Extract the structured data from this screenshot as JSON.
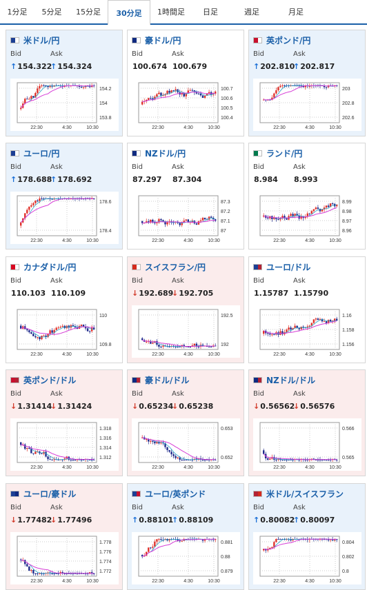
{
  "tabs": [
    "1分足",
    "5分足",
    "15分足",
    "30分足",
    "1時間足",
    "日足",
    "週足",
    "月足"
  ],
  "active_tab": 3,
  "x_ticks": [
    "22:30",
    "4:30",
    "10:30"
  ],
  "colors": {
    "up_candle": "#e0312a",
    "down_candle": "#1f2a8c",
    "ma_short": "#2aa7c9",
    "ma_long": "#d63cd6",
    "title": "#1a5fa8"
  },
  "cards": [
    {
      "pair": "米ドル/円",
      "flag": [
        "#1c3f94",
        "#ffffff"
      ],
      "trend": "up",
      "bid_arrow": "up",
      "ask_arrow": "up",
      "bid": "154.322",
      "ask": "154.324",
      "y_ticks": [
        "154.2",
        "154",
        "153.8"
      ]
    },
    {
      "pair": "豪ドル/円",
      "flag": [
        "#102a80",
        "#ffffff"
      ],
      "trend": "flat",
      "bid_arrow": "",
      "ask_arrow": "",
      "bid": "100.674",
      "ask": "100.679",
      "y_ticks": [
        "100.7",
        "100.6",
        "100.5",
        "100.4"
      ]
    },
    {
      "pair": "英ポンド/円",
      "flag": [
        "#c8102e",
        "#ffffff"
      ],
      "trend": "up",
      "bid_arrow": "up",
      "ask_arrow": "up",
      "bid": "202.810",
      "ask": "202.817",
      "y_ticks": [
        "203",
        "202.8",
        "202.6"
      ]
    },
    {
      "pair": "ユーロ/円",
      "flag": [
        "#1c3f94",
        "#ffffff"
      ],
      "trend": "up",
      "bid_arrow": "up",
      "ask_arrow": "up",
      "bid": "178.688",
      "ask": "178.692",
      "y_ticks": [
        "178.6",
        "178.4"
      ]
    },
    {
      "pair": "NZドル/円",
      "flag": [
        "#102a80",
        "#ffffff"
      ],
      "trend": "flat",
      "bid_arrow": "",
      "ask_arrow": "",
      "bid": "87.297",
      "ask": "87.304",
      "y_ticks": [
        "87.3",
        "87.2",
        "87.1",
        "87"
      ]
    },
    {
      "pair": "ランド/円",
      "flag": [
        "#007a4d",
        "#ffffff"
      ],
      "trend": "flat",
      "bid_arrow": "",
      "ask_arrow": "",
      "bid": "8.984",
      "ask": "8.993",
      "y_ticks": [
        "8.99",
        "8.98",
        "8.97",
        "8.96"
      ]
    },
    {
      "pair": "カナダドル/円",
      "flag": [
        "#d80621",
        "#ffffff"
      ],
      "trend": "flat",
      "bid_arrow": "",
      "ask_arrow": "",
      "bid": "110.103",
      "ask": "110.109",
      "y_ticks": [
        "110",
        "109.8"
      ]
    },
    {
      "pair": "スイスフラン/円",
      "flag": [
        "#d52b1e",
        "#ffffff"
      ],
      "trend": "down",
      "bid_arrow": "down",
      "ask_arrow": "down",
      "bid": "192.689",
      "ask": "192.705",
      "y_ticks": [
        "192.5",
        "192"
      ]
    },
    {
      "pair": "ユーロ/ドル",
      "flag": [
        "#1c3f94",
        "#b22234"
      ],
      "trend": "flat",
      "bid_arrow": "",
      "ask_arrow": "",
      "bid": "1.15787",
      "ask": "1.15790",
      "y_ticks": [
        "1.16",
        "1.158",
        "1.156"
      ]
    },
    {
      "pair": "英ポンド/ドル",
      "flag": [
        "#c8102e",
        "#b22234"
      ],
      "trend": "down",
      "bid_arrow": "down",
      "ask_arrow": "down",
      "bid": "1.31414",
      "ask": "1.31424",
      "y_ticks": [
        "1.318",
        "1.316",
        "1.314",
        "1.312"
      ]
    },
    {
      "pair": "豪ドル/ドル",
      "flag": [
        "#102a80",
        "#b22234"
      ],
      "trend": "down",
      "bid_arrow": "down",
      "ask_arrow": "down",
      "bid": "0.65234",
      "ask": "0.65238",
      "y_ticks": [
        "0.653",
        "0.652"
      ]
    },
    {
      "pair": "NZドル/ドル",
      "flag": [
        "#102a80",
        "#b22234"
      ],
      "trend": "down",
      "bid_arrow": "down",
      "ask_arrow": "down",
      "bid": "0.56562",
      "ask": "0.56576",
      "y_ticks": [
        "0.566",
        "0.565"
      ]
    },
    {
      "pair": "ユーロ/豪ドル",
      "flag": [
        "#1c3f94",
        "#102a80"
      ],
      "trend": "down",
      "bid_arrow": "down",
      "ask_arrow": "down",
      "bid": "1.77482",
      "ask": "1.77496",
      "y_ticks": [
        "1.778",
        "1.776",
        "1.774",
        "1.772"
      ]
    },
    {
      "pair": "ユーロ/英ポンド",
      "flag": [
        "#1c3f94",
        "#c8102e"
      ],
      "trend": "up",
      "bid_arrow": "up",
      "ask_arrow": "up",
      "bid": "0.88101",
      "ask": "0.88109",
      "y_ticks": [
        "0.881",
        "0.88",
        "0.879"
      ]
    },
    {
      "pair": "米ドル/スイスフラン",
      "flag": [
        "#b22234",
        "#d52b1e"
      ],
      "trend": "up",
      "bid_arrow": "up",
      "ask_arrow": "up",
      "bid": "0.80082",
      "ask": "0.80097",
      "y_ticks": [
        "0.804",
        "0.802",
        "0.8"
      ]
    }
  ]
}
